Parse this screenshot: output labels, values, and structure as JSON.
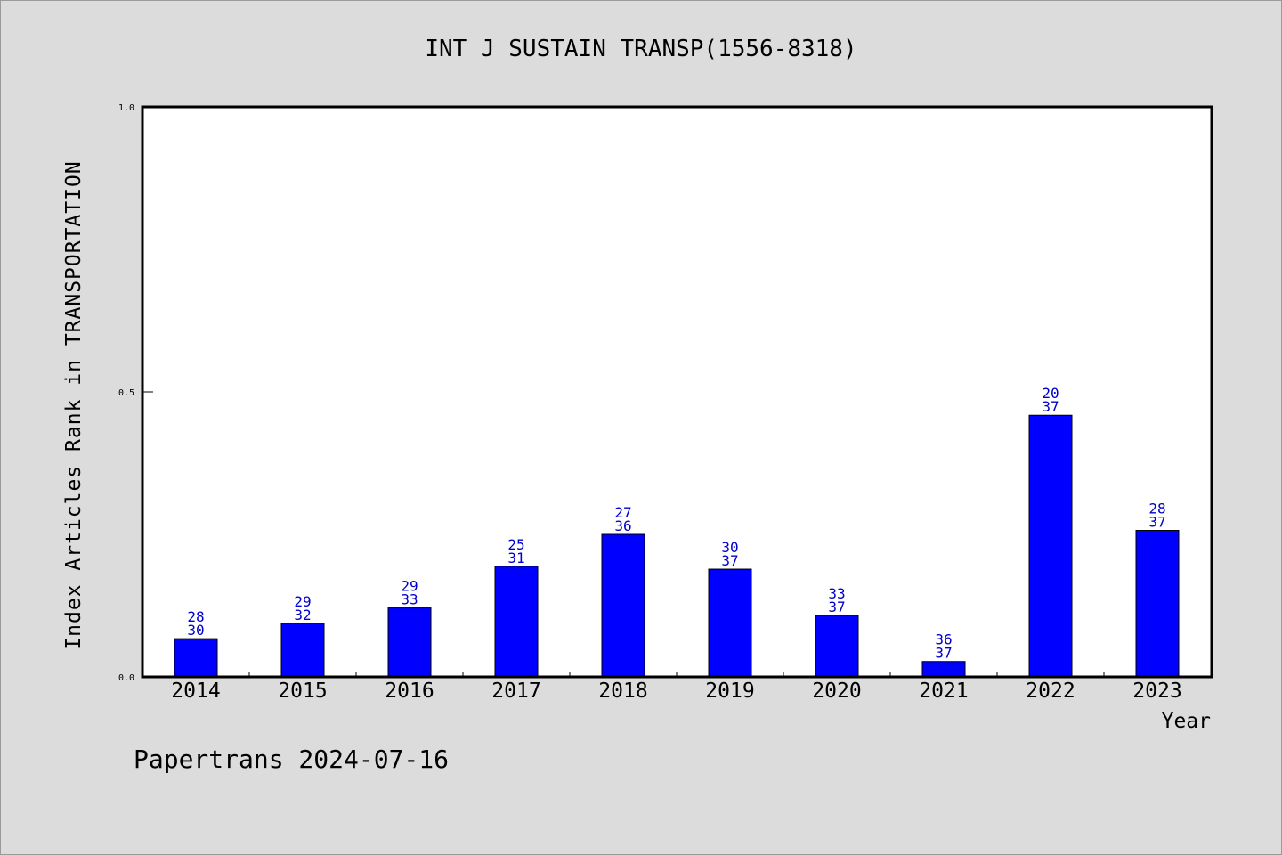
{
  "footer": "Papertrans 2024-07-16",
  "colors": {
    "background": "#dcdcdc",
    "plot_area": "#ffffff",
    "bar": "#0000ff",
    "bar_label": "#0000cc",
    "axis": "#000000"
  },
  "chart_data": {
    "type": "bar",
    "title": "INT J SUSTAIN TRANSP(1556-8318)",
    "xlabel": "Year",
    "ylabel": "Index Articles Rank in TRANSPORTATION",
    "ylim": [
      0,
      1.0
    ],
    "yticks": [
      "0.0",
      "0.5",
      "1.0"
    ],
    "grid": false,
    "categories": [
      "2014",
      "2015",
      "2016",
      "2017",
      "2018",
      "2019",
      "2020",
      "2021",
      "2022",
      "2023"
    ],
    "values": [
      0.067,
      0.094,
      0.121,
      0.194,
      0.25,
      0.189,
      0.108,
      0.027,
      0.459,
      0.257
    ],
    "labels_top": [
      "28",
      "29",
      "29",
      "25",
      "27",
      "30",
      "33",
      "36",
      "20",
      "28"
    ],
    "labels_bottom": [
      "30",
      "32",
      "33",
      "31",
      "36",
      "37",
      "37",
      "37",
      "37",
      "37"
    ]
  }
}
